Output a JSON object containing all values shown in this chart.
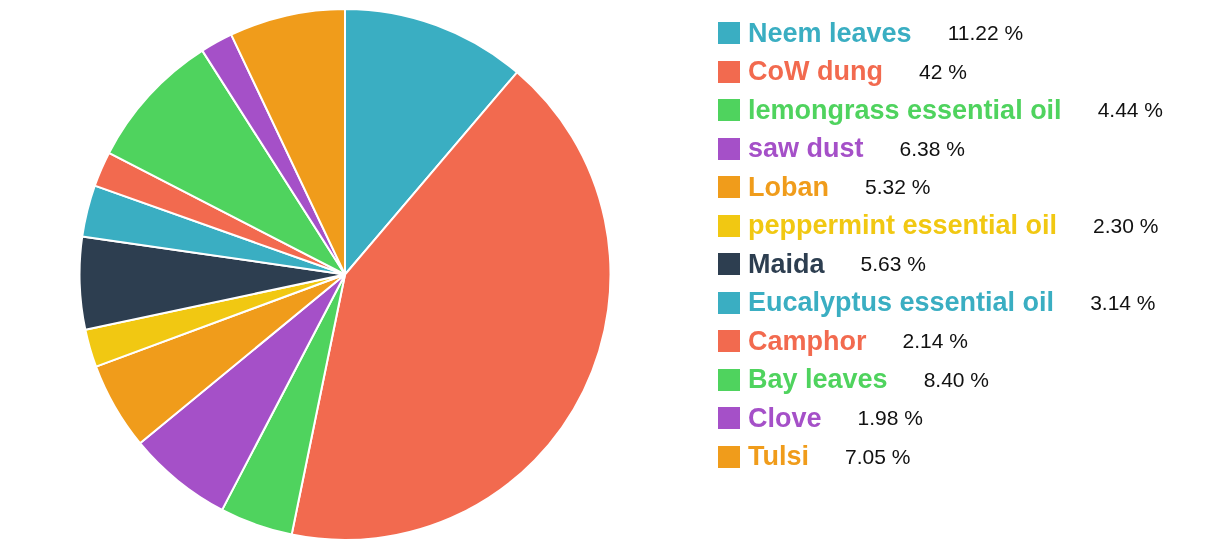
{
  "chart_data": {
    "type": "pie",
    "categories": [
      "Neem leaves",
      "CoW dung",
      "lemongrass essential oil",
      "saw dust",
      "Loban",
      "peppermint essential oil",
      "Maida",
      "Eucalyptus essential oil",
      "Camphor",
      "Bay leaves",
      "Clove",
      "Tulsi"
    ],
    "values": [
      11.22,
      42,
      4.44,
      6.38,
      5.32,
      2.3,
      5.63,
      3.14,
      2.14,
      8.4,
      1.98,
      7.05
    ],
    "value_labels": [
      "11.22 %",
      "42 %",
      "4.44 %",
      "6.38 %",
      "5.32 %",
      "2.30 %",
      "5.63 %",
      "3.14 %",
      "2.14 %",
      "8.40 %",
      "1.98 %",
      "7.05 %"
    ],
    "colors": [
      "#3aaec2",
      "#f26a4f",
      "#4fd35e",
      "#a550c8",
      "#f09c1b",
      "#f1c812",
      "#2d3e50",
      "#3aaec2",
      "#f26a4f",
      "#4fd35e",
      "#a550c8",
      "#f09c1b"
    ],
    "legend": "right"
  }
}
